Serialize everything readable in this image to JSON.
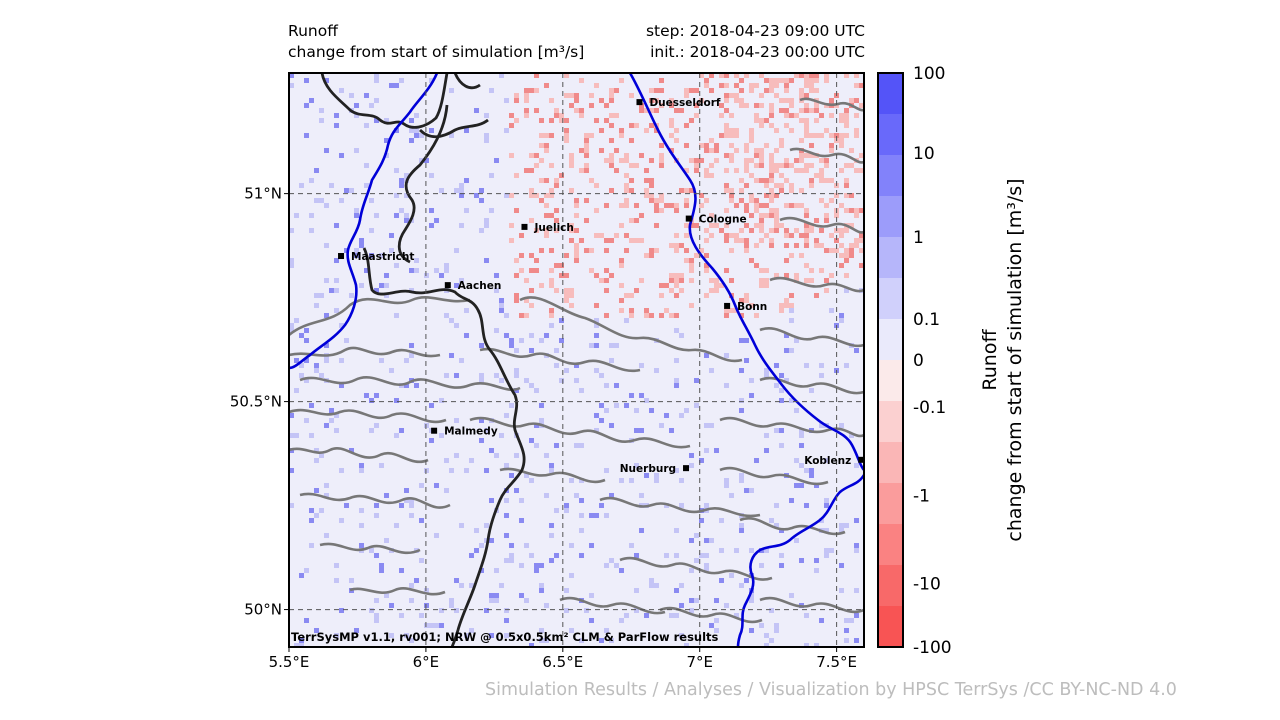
{
  "title": {
    "left_line1": "Runoff",
    "left_line2": "change from start of simulation [m³/s]",
    "right_line1": "step: 2018-04-23 09:00 UTC",
    "right_line2": "init.: 2018-04-23 00:00 UTC"
  },
  "map": {
    "x_ticks": [
      "5.5°E",
      "6°E",
      "6.5°E",
      "7°E",
      "7.5°E"
    ],
    "y_ticks": [
      "51°N",
      "50.5°N",
      "50°N"
    ],
    "extent": {
      "lon": [
        5.5,
        7.6
      ],
      "lat": [
        49.91,
        51.29
      ]
    },
    "cities": [
      {
        "name": "Duesseldorf",
        "lon": 6.78,
        "lat": 51.22
      },
      {
        "name": "Cologne",
        "lon": 6.96,
        "lat": 50.94
      },
      {
        "name": "Juelich",
        "lon": 6.36,
        "lat": 50.92
      },
      {
        "name": "Maastricht",
        "lon": 5.69,
        "lat": 50.85
      },
      {
        "name": "Aachen",
        "lon": 6.08,
        "lat": 50.78
      },
      {
        "name": "Bonn",
        "lon": 7.1,
        "lat": 50.73
      },
      {
        "name": "Malmedy",
        "lon": 6.03,
        "lat": 50.43
      },
      {
        "name": "Nuerburg",
        "lon": 6.95,
        "lat": 50.34
      },
      {
        "name": "Koblenz",
        "lon": 7.59,
        "lat": 50.36
      }
    ],
    "credit": "TerrSysMP v1.1, rv001; NRW @ 0.5x0.5km² CLM & ParFlow results"
  },
  "colorbar": {
    "title_line1": "Runoff",
    "title_line2": "change from start of simulation [m³/s]",
    "tick_labels": [
      "100",
      "10",
      "1",
      "0.1",
      "0",
      "-0.1",
      "-1",
      "-10",
      "-100"
    ],
    "colors": [
      "#5454f8",
      "#6969fa",
      "#8282fa",
      "#9c9cfa",
      "#b6b6fa",
      "#d0d0fb",
      "#eaeafb",
      "#fbeaea",
      "#fbd0d0",
      "#fab6b6",
      "#fa9c9c",
      "#fa8282",
      "#f86969",
      "#f85454"
    ]
  },
  "footer": "Simulation Results / Analyses / Visualization by HPSC TerrSys /CC BY-NC-ND 4.0",
  "colors": {
    "background_field": "#eeeefa",
    "river": "#0000d8",
    "border": "#222222",
    "terrain_contour": "#777777",
    "positive_runoff": "#7a7af2",
    "negative_runoff": "#f08080"
  }
}
